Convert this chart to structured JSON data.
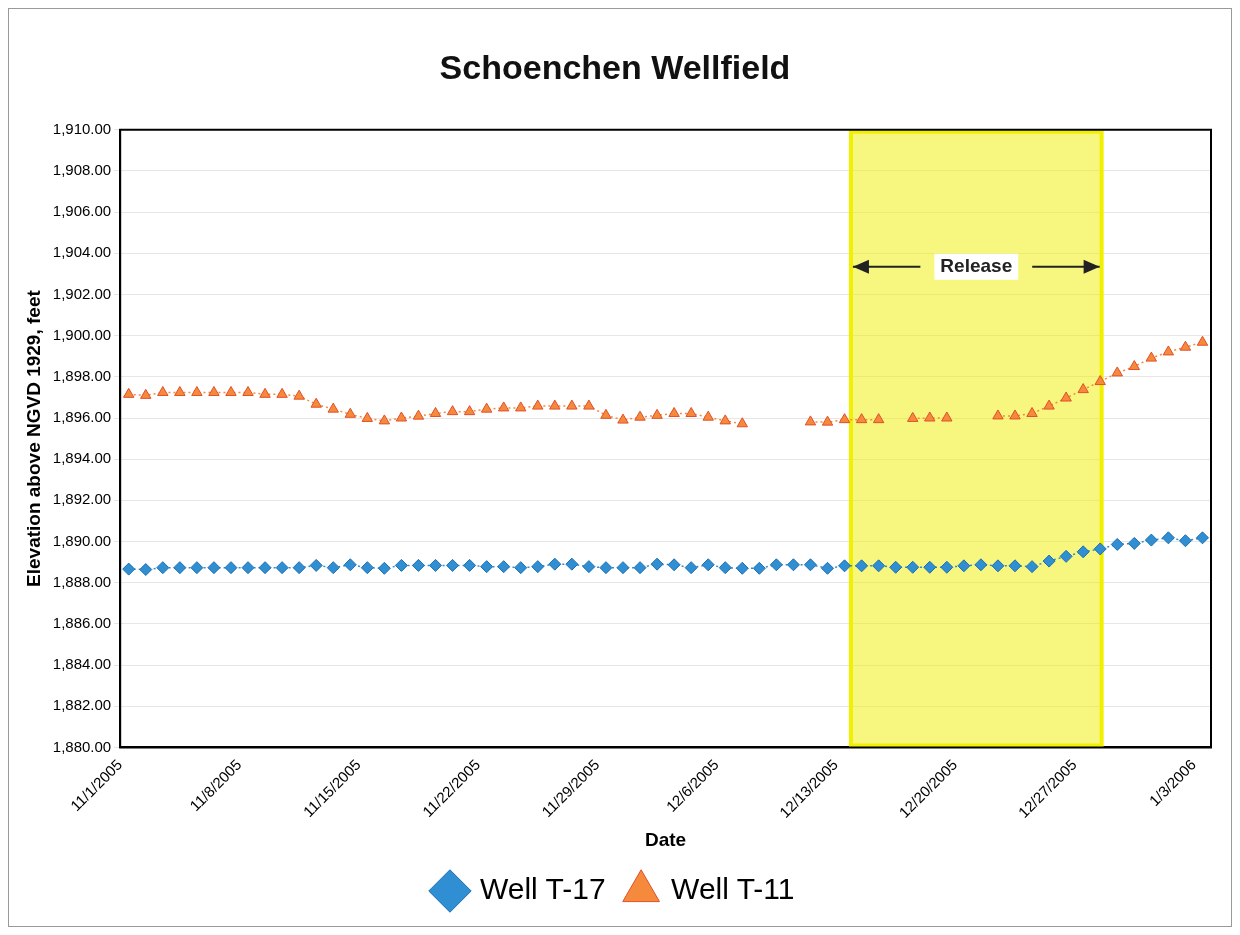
{
  "chart_data": {
    "type": "line",
    "title": "Schoenchen Wellfield",
    "xlabel": "Date",
    "ylabel": "Elevation above NGVD 1929, feet",
    "x": [
      "2005-11-01T12:00",
      "2005-11-02T12:00",
      "2005-11-03T12:00",
      "2005-11-04T12:00",
      "2005-11-05T12:00",
      "2005-11-06T12:00",
      "2005-11-07T12:00",
      "2005-11-08T12:00",
      "2005-11-09T12:00",
      "2005-11-10T12:00",
      "2005-11-11T12:00",
      "2005-11-12T12:00",
      "2005-11-13T12:00",
      "2005-11-14T12:00",
      "2005-11-15T12:00",
      "2005-11-16T12:00",
      "2005-11-17T12:00",
      "2005-11-18T12:00",
      "2005-11-19T12:00",
      "2005-11-20T12:00",
      "2005-11-21T12:00",
      "2005-11-22T12:00",
      "2005-11-23T12:00",
      "2005-11-24T12:00",
      "2005-11-25T12:00",
      "2005-11-26T12:00",
      "2005-11-27T12:00",
      "2005-11-28T12:00",
      "2005-11-29T12:00",
      "2005-11-30T12:00",
      "2005-12-01T12:00",
      "2005-12-02T12:00",
      "2005-12-03T12:00",
      "2005-12-04T12:00",
      "2005-12-05T12:00",
      "2005-12-06T12:00",
      "2005-12-07T12:00",
      "2005-12-08T12:00",
      "2005-12-09T12:00",
      "2005-12-10T12:00",
      "2005-12-11T12:00",
      "2005-12-12T12:00",
      "2005-12-13T12:00",
      "2005-12-14T12:00",
      "2005-12-15T12:00",
      "2005-12-16T12:00",
      "2005-12-17T12:00",
      "2005-12-18T12:00",
      "2005-12-19T12:00",
      "2005-12-20T12:00",
      "2005-12-21T12:00",
      "2005-12-22T12:00",
      "2005-12-23T12:00",
      "2005-12-24T12:00",
      "2005-12-25T12:00",
      "2005-12-26T12:00",
      "2005-12-27T12:00",
      "2005-12-28T12:00",
      "2005-12-29T12:00",
      "2005-12-30T12:00",
      "2005-12-31T12:00",
      "2006-01-01T12:00",
      "2006-01-02T12:00",
      "2006-01-03T12:00"
    ],
    "series": [
      {
        "name": "Well T-17",
        "color": "#2f8fd2",
        "marker": "diamond",
        "values": [
          1888.66,
          1888.64,
          1888.73,
          1888.73,
          1888.73,
          1888.73,
          1888.73,
          1888.73,
          1888.73,
          1888.73,
          1888.73,
          1888.84,
          1888.73,
          1888.87,
          1888.73,
          1888.7,
          1888.84,
          1888.84,
          1888.84,
          1888.84,
          1888.84,
          1888.78,
          1888.78,
          1888.73,
          1888.78,
          1888.9,
          1888.9,
          1888.78,
          1888.73,
          1888.73,
          1888.73,
          1888.9,
          1888.87,
          1888.73,
          1888.87,
          1888.73,
          1888.7,
          1888.7,
          1888.87,
          1888.87,
          1888.87,
          1888.7,
          1888.82,
          1888.82,
          1888.82,
          1888.75,
          1888.75,
          1888.75,
          1888.75,
          1888.82,
          1888.87,
          1888.82,
          1888.82,
          1888.78,
          1889.05,
          1889.28,
          1889.5,
          1889.64,
          1889.86,
          1889.91,
          1890.07,
          1890.18,
          1890.04,
          1890.18
        ]
      },
      {
        "name": "Well T-11",
        "color": "#f58a3c",
        "marker": "triangle",
        "values": [
          1897.15,
          1897.1,
          1897.24,
          1897.24,
          1897.24,
          1897.24,
          1897.24,
          1897.24,
          1897.15,
          1897.15,
          1897.06,
          1896.67,
          1896.43,
          1896.18,
          1895.98,
          1895.86,
          1896.0,
          1896.09,
          1896.22,
          1896.31,
          1896.31,
          1896.43,
          1896.49,
          1896.49,
          1896.58,
          1896.58,
          1896.58,
          1896.58,
          1896.13,
          1895.9,
          1896.04,
          1896.13,
          1896.22,
          1896.22,
          1896.04,
          1895.86,
          1895.72,
          null,
          null,
          null,
          1895.81,
          1895.8,
          1895.92,
          1895.92,
          1895.92,
          null,
          1895.98,
          1896.0,
          1896.0,
          null,
          null,
          1896.1,
          1896.1,
          1896.22,
          1896.58,
          1896.97,
          1897.38,
          1897.77,
          1898.19,
          1898.5,
          1898.91,
          1899.21,
          1899.44,
          1899.68
        ]
      }
    ],
    "xlim": [
      "2005-11-01",
      "2006-01-04"
    ],
    "xticks": [
      {
        "value": "2005-11-01",
        "label": "11/1/2005"
      },
      {
        "value": "2005-11-08",
        "label": "11/8/2005"
      },
      {
        "value": "2005-11-15",
        "label": "11/15/2005"
      },
      {
        "value": "2005-11-22",
        "label": "11/22/2005"
      },
      {
        "value": "2005-11-29",
        "label": "11/29/2005"
      },
      {
        "value": "2005-12-06",
        "label": "12/6/2005"
      },
      {
        "value": "2005-12-13",
        "label": "12/13/2005"
      },
      {
        "value": "2005-12-20",
        "label": "12/20/2005"
      },
      {
        "value": "2005-12-27",
        "label": "12/27/2005"
      },
      {
        "value": "2006-01-03",
        "label": "1/3/2006"
      }
    ],
    "ylim": [
      1880,
      1910
    ],
    "yticks": [
      {
        "value": 1880,
        "label": "1,880.00"
      },
      {
        "value": 1882,
        "label": "1,882.00"
      },
      {
        "value": 1884,
        "label": "1,884.00"
      },
      {
        "value": 1886,
        "label": "1,886.00"
      },
      {
        "value": 1888,
        "label": "1,888.00"
      },
      {
        "value": 1890,
        "label": "1,890.00"
      },
      {
        "value": 1892,
        "label": "1,892.00"
      },
      {
        "value": 1894,
        "label": "1,894.00"
      },
      {
        "value": 1896,
        "label": "1,896.00"
      },
      {
        "value": 1898,
        "label": "1,898.00"
      },
      {
        "value": 1900,
        "label": "1,900.00"
      },
      {
        "value": 1902,
        "label": "1,902.00"
      },
      {
        "value": 1904,
        "label": "1,904.00"
      },
      {
        "value": 1906,
        "label": "1,906.00"
      },
      {
        "value": 1908,
        "label": "1,908.00"
      },
      {
        "value": 1910,
        "label": "1,910.00"
      }
    ],
    "bands": [
      {
        "axis": "x",
        "from": "2005-12-13T21:00",
        "to": "2005-12-28T14:00",
        "label": "Release",
        "color": "#f0f000"
      }
    ],
    "grid": "y",
    "legend": "bottom",
    "line_style": "dotted"
  }
}
